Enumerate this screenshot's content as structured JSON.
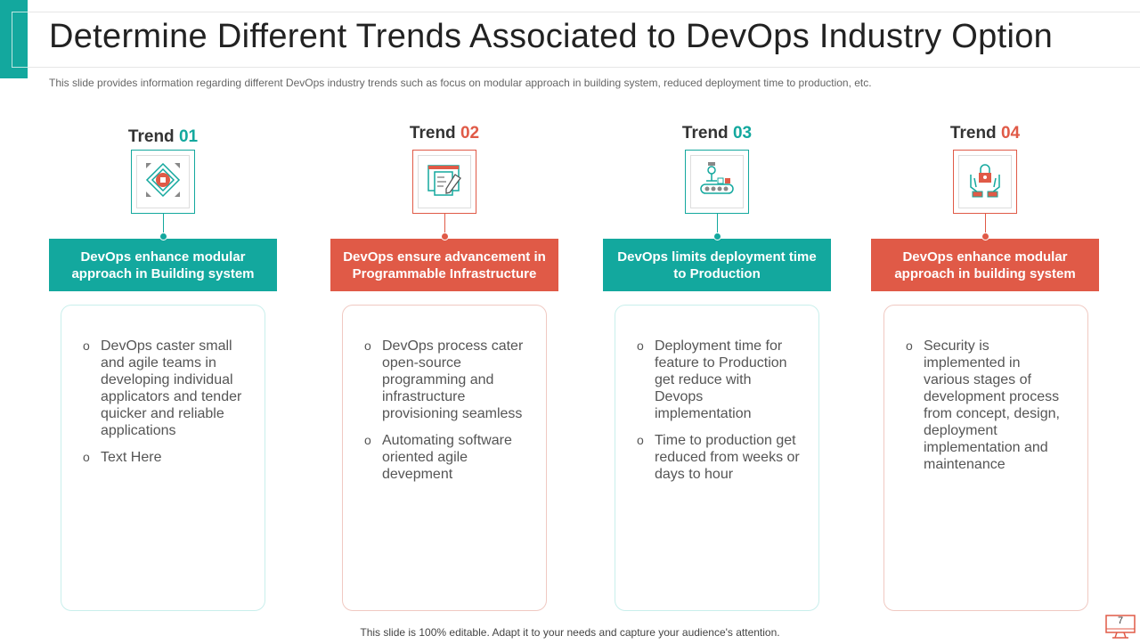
{
  "title": "Determine Different Trends Associated to DevOps Industry Option",
  "subtitle": "This slide provides  information  regarding  different  DevOps  industry trends such as focus on modular approach in building system, reduced deployment time to production,  etc.",
  "colors": {
    "teal": "#13a89e",
    "red": "#e05a47"
  },
  "trends": [
    {
      "prefix": "Trend ",
      "num": "01",
      "color": "teal",
      "icon": "modular-chip-icon",
      "heading": "DevOps enhance modular approach in Building system",
      "bullets": [
        "DevOps caster small and agile teams in developing individual applicators and tender quicker and reliable applications",
        "Text Here"
      ]
    },
    {
      "prefix": "Trend ",
      "num": "02",
      "color": "red",
      "icon": "code-document-pencil-icon",
      "heading": "DevOps ensure advancement in Programmable Infrastructure",
      "bullets": [
        "DevOps process cater open-source programming and infrastructure provisioning seamless",
        "Automating software oriented agile devepment"
      ]
    },
    {
      "prefix": "Trend ",
      "num": "03",
      "color": "teal",
      "icon": "conveyor-robot-arm-icon",
      "heading": "DevOps limits deployment time to Production",
      "bullets": [
        "Deployment time for feature to Production get reduce with Devops implementation",
        "Time to production get reduced from weeks or days to hour"
      ]
    },
    {
      "prefix": "Trend ",
      "num": "04",
      "color": "red",
      "icon": "hands-padlock-icon",
      "heading": "DevOps enhance modular approach in building system",
      "bullets": [
        "Security is implemented in various stages of development process from concept, design, deployment implementation and maintenance"
      ]
    }
  ],
  "footer": "This slide is 100% editable. Adapt it to your needs and capture your audience's attention.",
  "page_number": "7"
}
